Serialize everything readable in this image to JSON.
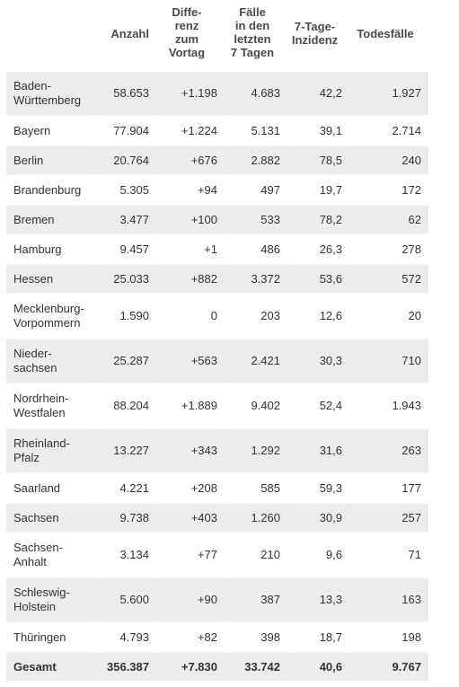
{
  "headers": {
    "state": "",
    "anzahl": "Anzahl",
    "differenz": "Diffe-\nrenz\nzum\nVortag",
    "faelle7": "Fälle\nin den\nletzten\n7 Tagen",
    "inzidenz": "7-Tage-\nInzidenz",
    "todesfaelle": "Todesfälle"
  },
  "rows": [
    {
      "state": "Baden-\nWürttemberg",
      "anzahl": "58.653",
      "diff": "+1.198",
      "week": "4.683",
      "inz": "42,2",
      "tod": "1.927"
    },
    {
      "state": "Bayern",
      "anzahl": "77.904",
      "diff": "+1.224",
      "week": "5.131",
      "inz": "39,1",
      "tod": "2.714"
    },
    {
      "state": "Berlin",
      "anzahl": "20.764",
      "diff": "+676",
      "week": "2.882",
      "inz": "78,5",
      "tod": "240"
    },
    {
      "state": "Brandenburg",
      "anzahl": "5.305",
      "diff": "+94",
      "week": "497",
      "inz": "19,7",
      "tod": "172"
    },
    {
      "state": "Bremen",
      "anzahl": "3.477",
      "diff": "+100",
      "week": "533",
      "inz": "78,2",
      "tod": "62"
    },
    {
      "state": "Hamburg",
      "anzahl": "9.457",
      "diff": "+1",
      "week": "486",
      "inz": "26,3",
      "tod": "278"
    },
    {
      "state": "Hessen",
      "anzahl": "25.033",
      "diff": "+882",
      "week": "3.372",
      "inz": "53,6",
      "tod": "572"
    },
    {
      "state": "Mecklenburg-\nVorpommern",
      "anzahl": "1.590",
      "diff": "0",
      "week": "203",
      "inz": "12,6",
      "tod": "20"
    },
    {
      "state": "Nieder-\nsachsen",
      "anzahl": "25.287",
      "diff": "+563",
      "week": "2.421",
      "inz": "30,3",
      "tod": "710"
    },
    {
      "state": "Nordrhein-\nWestfalen",
      "anzahl": "88.204",
      "diff": "+1.889",
      "week": "9.402",
      "inz": "52,4",
      "tod": "1.943"
    },
    {
      "state": "Rheinland-\nPfalz",
      "anzahl": "13.227",
      "diff": "+343",
      "week": "1.292",
      "inz": "31,6",
      "tod": "263"
    },
    {
      "state": "Saarland",
      "anzahl": "4.221",
      "diff": "+208",
      "week": "585",
      "inz": "59,3",
      "tod": "177"
    },
    {
      "state": "Sachsen",
      "anzahl": "9.738",
      "diff": "+403",
      "week": "1.260",
      "inz": "30,9",
      "tod": "257"
    },
    {
      "state": "Sachsen-\nAnhalt",
      "anzahl": "3.134",
      "diff": "+77",
      "week": "210",
      "inz": "9,6",
      "tod": "71"
    },
    {
      "state": "Schleswig-\nHolstein",
      "anzahl": "5.600",
      "diff": "+90",
      "week": "387",
      "inz": "13,3",
      "tod": "163"
    },
    {
      "state": "Thüringen",
      "anzahl": "4.793",
      "diff": "+82",
      "week": "398",
      "inz": "18,7",
      "tod": "198"
    }
  ],
  "total": {
    "state": "Gesamt",
    "anzahl": "356.387",
    "diff": "+7.830",
    "week": "33.742",
    "inz": "40,6",
    "tod": "9.767"
  }
}
